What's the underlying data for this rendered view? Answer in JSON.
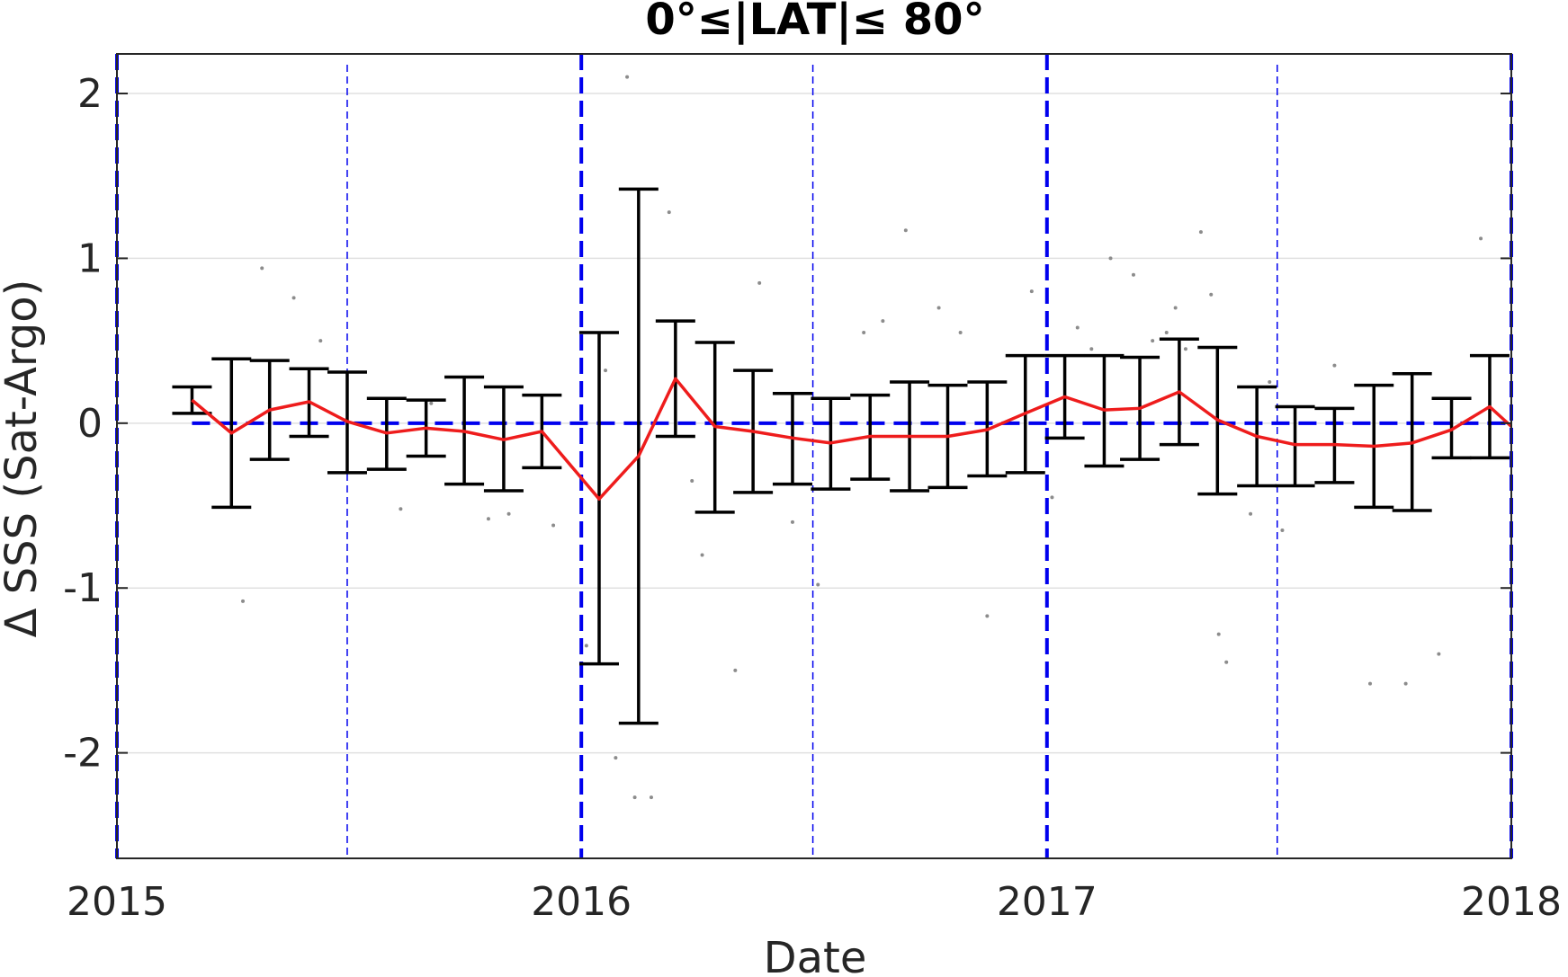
{
  "chart_data": {
    "type": "line",
    "title": "0°≤|LAT|≤ 80°",
    "xlabel": "Date",
    "ylabel": "Δ SSS (Sat-Argo)",
    "xlim": [
      "2015-01-01",
      "2018-01-01"
    ],
    "ylim": [
      -2.64,
      2.24
    ],
    "x_ticks": [
      "2015",
      "2016",
      "2017",
      "2018"
    ],
    "y_ticks": [
      2,
      1,
      0,
      -1,
      -2
    ],
    "y_tick_labels": [
      "2",
      "1",
      "0",
      "-1",
      "-2"
    ],
    "grid": true,
    "reference_line": {
      "y": 0,
      "style": "dashed",
      "color": "#0000ee"
    },
    "year_lines": [
      "2015-01-01",
      "2016-01-01",
      "2017-01-01",
      "2018-01-01"
    ],
    "half_year_lines": [
      "2015-07-01",
      "2016-07-01",
      "2017-07-01"
    ],
    "colors": {
      "mean_line": "#ee1c1c",
      "error_bars": "#000000",
      "scatter": "#8c8c8c",
      "year_lines": "#0000ee",
      "grid": "#e0e0e0"
    },
    "series": [
      {
        "name": "mean",
        "style": "line with error bars",
        "x": [
          "2015-03-01",
          "2015-04-01",
          "2015-05-01",
          "2015-06-01",
          "2015-07-01",
          "2015-08-01",
          "2015-09-01",
          "2015-10-01",
          "2015-11-01",
          "2015-12-01",
          "2016-01-15",
          "2016-02-15",
          "2016-03-15",
          "2016-04-15",
          "2016-05-15",
          "2016-06-15",
          "2016-07-15",
          "2016-08-15",
          "2016-09-15",
          "2016-10-15",
          "2016-11-15",
          "2016-12-15",
          "2017-01-15",
          "2017-02-15",
          "2017-03-15",
          "2017-04-15",
          "2017-05-15",
          "2017-06-15",
          "2017-07-15",
          "2017-08-15",
          "2017-09-15",
          "2017-10-15",
          "2017-11-15",
          "2017-12-15"
        ],
        "y": [
          0.14,
          -0.06,
          0.08,
          0.13,
          0.01,
          -0.06,
          -0.03,
          -0.05,
          -0.1,
          -0.05,
          -0.46,
          -0.2,
          0.27,
          -0.02,
          -0.05,
          -0.09,
          -0.12,
          -0.08,
          -0.08,
          -0.08,
          -0.04,
          0.06,
          0.16,
          0.08,
          0.09,
          0.19,
          0.02,
          -0.08,
          -0.13,
          -0.13,
          -0.14,
          -0.12,
          -0.04,
          0.1
        ],
        "err_low": [
          0.06,
          -0.51,
          -0.22,
          -0.08,
          -0.3,
          -0.28,
          -0.2,
          -0.37,
          -0.41,
          -0.27,
          -1.46,
          -1.82,
          -0.08,
          -0.54,
          -0.42,
          -0.37,
          -0.4,
          -0.34,
          -0.41,
          -0.39,
          -0.32,
          -0.3,
          -0.09,
          -0.26,
          -0.22,
          -0.13,
          -0.43,
          -0.38,
          -0.38,
          -0.36,
          -0.51,
          -0.53,
          -0.21,
          -0.21
        ],
        "err_high": [
          0.22,
          0.39,
          0.38,
          0.33,
          0.31,
          0.15,
          0.14,
          0.28,
          0.22,
          0.17,
          0.55,
          1.42,
          0.62,
          0.49,
          0.32,
          0.18,
          0.15,
          0.17,
          0.25,
          0.23,
          0.25,
          0.41,
          0.41,
          0.41,
          0.4,
          0.51,
          0.46,
          0.22,
          0.1,
          0.09,
          0.23,
          0.3,
          0.15,
          0.41
        ]
      },
      {
        "style": "scatter",
        "x": [
          "2015-04-25",
          "2015-05-20",
          "2015-08-12",
          "2015-09-05",
          "2015-10-20",
          "2015-12-10",
          "2016-01-05",
          "2016-01-28",
          "2016-02-06",
          "2016-02-12",
          "2016-02-25",
          "2016-03-10",
          "2016-04-05",
          "2016-05-01",
          "2016-05-20",
          "2016-06-15",
          "2016-07-05",
          "2016-08-10",
          "2016-09-12",
          "2016-10-08",
          "2016-11-15",
          "2016-12-20",
          "2017-01-25",
          "2017-02-20",
          "2017-03-10",
          "2017-03-25",
          "2017-04-05",
          "2017-04-12",
          "2017-04-20",
          "2017-05-02",
          "2017-05-10",
          "2017-05-16",
          "2017-05-22",
          "2017-06-10",
          "2017-07-05",
          "2017-08-15",
          "2017-09-12",
          "2017-10-10",
          "2017-11-05",
          "2017-12-08",
          "2015-04-10",
          "2015-06-10",
          "2015-11-05",
          "2016-01-20",
          "2016-03-28",
          "2016-08-25",
          "2016-10-25",
          "2017-01-05",
          "2017-02-05",
          "2017-06-25"
        ],
        "y": [
          0.94,
          0.76,
          -0.52,
          0.12,
          -0.58,
          -0.62,
          -1.35,
          -2.03,
          2.1,
          -2.27,
          -2.27,
          1.28,
          -0.8,
          -1.5,
          0.85,
          -0.6,
          -0.98,
          0.55,
          1.17,
          0.7,
          -1.17,
          0.8,
          0.58,
          1.0,
          0.9,
          0.5,
          0.55,
          0.7,
          0.45,
          1.16,
          0.78,
          -1.28,
          -1.45,
          -0.55,
          -0.65,
          0.35,
          -1.58,
          -1.58,
          -1.4,
          1.12,
          -1.08,
          0.5,
          -0.55,
          0.32,
          -0.35,
          0.62,
          0.55,
          -0.45,
          0.45,
          0.25
        ]
      }
    ]
  }
}
